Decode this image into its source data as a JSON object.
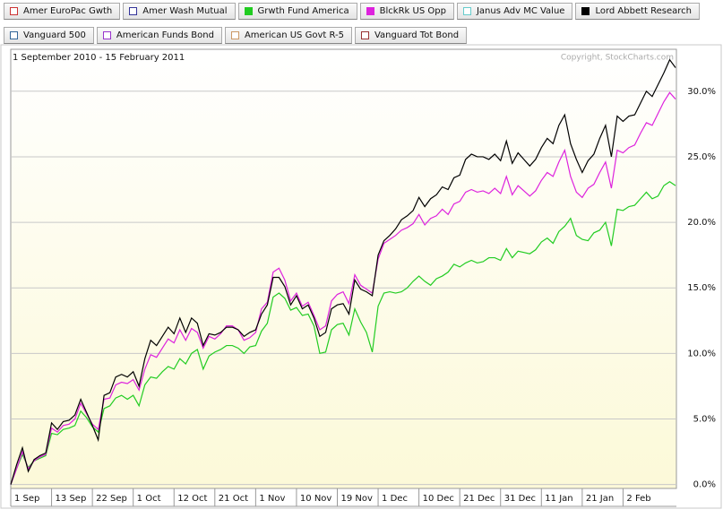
{
  "chart_data": {
    "type": "line",
    "subtitle": "1 September 2010 - 15 February 2011",
    "copyright": "Copyright, StockCharts.com",
    "categories": [
      "1 Sep",
      null,
      null,
      null,
      null,
      null,
      null,
      "13 Sep",
      null,
      null,
      null,
      null,
      null,
      null,
      "22 Sep",
      null,
      null,
      null,
      null,
      null,
      null,
      "1 Oct",
      null,
      null,
      null,
      null,
      null,
      null,
      "12 Oct",
      null,
      null,
      null,
      null,
      null,
      null,
      "21 Oct",
      null,
      null,
      null,
      null,
      null,
      null,
      "1 Nov",
      null,
      null,
      null,
      null,
      null,
      null,
      "10 Nov",
      null,
      null,
      null,
      null,
      null,
      null,
      "19 Nov",
      null,
      null,
      null,
      null,
      null,
      null,
      "1 Dec",
      null,
      null,
      null,
      null,
      null,
      null,
      "10 Dec",
      null,
      null,
      null,
      null,
      null,
      null,
      "21 Dec",
      null,
      null,
      null,
      null,
      null,
      null,
      "31 Dec",
      null,
      null,
      null,
      null,
      null,
      null,
      "11 Jan",
      null,
      null,
      null,
      null,
      null,
      null,
      "21 Jan",
      null,
      null,
      null,
      null,
      null,
      null,
      "2 Feb",
      null,
      null,
      null,
      null,
      null,
      null,
      null,
      null,
      null
    ],
    "ylim": [
      -0.3,
      33.2
    ],
    "yticks": [
      {
        "value": 0,
        "label": "0.0%"
      },
      {
        "value": 5,
        "label": "5.0%"
      },
      {
        "value": 10,
        "label": "10.0%"
      },
      {
        "value": 15,
        "label": "15.0%"
      },
      {
        "value": 20,
        "label": "20.0%"
      },
      {
        "value": 25,
        "label": "25.0%"
      },
      {
        "value": 30,
        "label": "30.0%"
      }
    ],
    "grid": true,
    "series": [
      {
        "name": "Amer EuroPac Gwth",
        "color": "#cc3333"
      },
      {
        "name": "Amer Wash Mutual",
        "color": "#333399"
      },
      {
        "name": "Grwth Fund America",
        "color": "#22cc22",
        "values": [
          0,
          1.2,
          2.3,
          1.3,
          1.8,
          2.0,
          2.2,
          3.9,
          3.8,
          4.2,
          4.3,
          4.5,
          5.6,
          5.1,
          4.4,
          4.0,
          5.8,
          6.0,
          6.6,
          6.8,
          6.5,
          6.8,
          6.0,
          7.6,
          8.2,
          8.1,
          8.6,
          9.0,
          8.8,
          9.6,
          9.2,
          10.0,
          10.3,
          8.8,
          9.8,
          10.1,
          10.3,
          10.6,
          10.6,
          10.4,
          10.0,
          10.5,
          10.6,
          11.7,
          12.3,
          14.3,
          14.6,
          14.2,
          13.3,
          13.5,
          12.9,
          13.0,
          12.1,
          10.0,
          10.1,
          11.8,
          12.2,
          12.3,
          11.4,
          13.4,
          12.4,
          11.6,
          10.1,
          13.6,
          14.6,
          14.7,
          14.6,
          14.7,
          15.0,
          15.5,
          15.9,
          15.5,
          15.2,
          15.7,
          15.9,
          16.2,
          16.8,
          16.6,
          16.9,
          17.1,
          16.9,
          17.0,
          17.3,
          17.3,
          17.1,
          18.0,
          17.3,
          17.8,
          17.7,
          17.6,
          17.9,
          18.5,
          18.8,
          18.4,
          19.3,
          19.7,
          20.3,
          19.0,
          18.7,
          18.6,
          19.2,
          19.4,
          20.0,
          18.2,
          21.0,
          20.9,
          21.2,
          21.3,
          21.8,
          22.3,
          21.8,
          22.0,
          22.8,
          23.1,
          22.8
        ]
      },
      {
        "name": "BlckRk US Opp",
        "color": "#dd22dd",
        "values": [
          0,
          1.2,
          2.5,
          1.2,
          1.8,
          2.1,
          2.3,
          4.3,
          4.0,
          4.5,
          4.6,
          5.0,
          6.2,
          5.4,
          4.6,
          4.2,
          6.5,
          6.6,
          7.6,
          7.8,
          7.7,
          8.0,
          7.2,
          8.8,
          9.9,
          9.7,
          10.4,
          11.1,
          10.8,
          11.8,
          11.0,
          11.9,
          11.6,
          10.4,
          11.3,
          11.1,
          11.5,
          12.1,
          12.1,
          11.8,
          11.0,
          11.2,
          11.6,
          13.4,
          13.9,
          16.2,
          16.5,
          15.6,
          14.0,
          14.6,
          13.6,
          13.9,
          12.9,
          11.8,
          12.1,
          14.0,
          14.5,
          14.7,
          13.8,
          16.0,
          15.2,
          14.9,
          14.6,
          17.2,
          18.4,
          18.7,
          19.0,
          19.4,
          19.6,
          19.9,
          20.6,
          19.8,
          20.3,
          20.5,
          21.0,
          20.6,
          21.4,
          21.6,
          22.3,
          22.5,
          22.3,
          22.4,
          22.2,
          22.6,
          22.2,
          23.5,
          22.1,
          22.8,
          22.4,
          22.0,
          22.4,
          23.2,
          23.8,
          23.5,
          24.6,
          25.5,
          23.5,
          22.3,
          21.9,
          22.6,
          22.9,
          23.8,
          24.6,
          22.6,
          25.5,
          25.3,
          25.7,
          25.9,
          26.8,
          27.6,
          27.4,
          28.3,
          29.2,
          29.9,
          29.4
        ]
      },
      {
        "name": "Janus Adv MC Value",
        "color": "#66cccc"
      },
      {
        "name": "Lord Abbett Research",
        "color": "#000000",
        "values": [
          0,
          1.5,
          2.8,
          1.0,
          1.9,
          2.2,
          2.4,
          4.7,
          4.2,
          4.8,
          4.9,
          5.3,
          6.5,
          5.5,
          4.5,
          3.4,
          6.8,
          7.0,
          8.2,
          8.4,
          8.2,
          8.6,
          7.5,
          9.6,
          11.0,
          10.6,
          11.3,
          12.0,
          11.5,
          12.7,
          11.6,
          12.7,
          12.3,
          10.6,
          11.5,
          11.4,
          11.6,
          12.0,
          12.0,
          11.8,
          11.3,
          11.6,
          11.8,
          13.0,
          13.7,
          15.8,
          15.8,
          15.1,
          13.7,
          14.4,
          13.4,
          13.7,
          12.7,
          11.3,
          11.6,
          13.4,
          13.7,
          13.8,
          13.0,
          15.6,
          14.9,
          14.7,
          14.4,
          17.5,
          18.6,
          19.0,
          19.5,
          20.2,
          20.5,
          20.9,
          21.9,
          21.2,
          21.8,
          22.1,
          22.7,
          22.5,
          23.4,
          23.6,
          24.8,
          25.2,
          25.0,
          25.0,
          24.8,
          25.2,
          24.7,
          26.2,
          24.5,
          25.3,
          24.8,
          24.3,
          24.8,
          25.7,
          26.4,
          26.0,
          27.4,
          28.2,
          26.0,
          24.8,
          23.8,
          24.7,
          25.2,
          26.4,
          27.4,
          25.0,
          28.1,
          27.7,
          28.1,
          28.2,
          29.1,
          30.0,
          29.6,
          30.5,
          31.4,
          32.4,
          31.8
        ]
      },
      {
        "name": "Vanguard 500",
        "color": "#336699"
      },
      {
        "name": "American Funds Bond",
        "color": "#9933cc"
      },
      {
        "name": "American US Govt R-5",
        "color": "#cc9966"
      },
      {
        "name": "Vanguard Tot Bond",
        "color": "#993333"
      }
    ]
  }
}
